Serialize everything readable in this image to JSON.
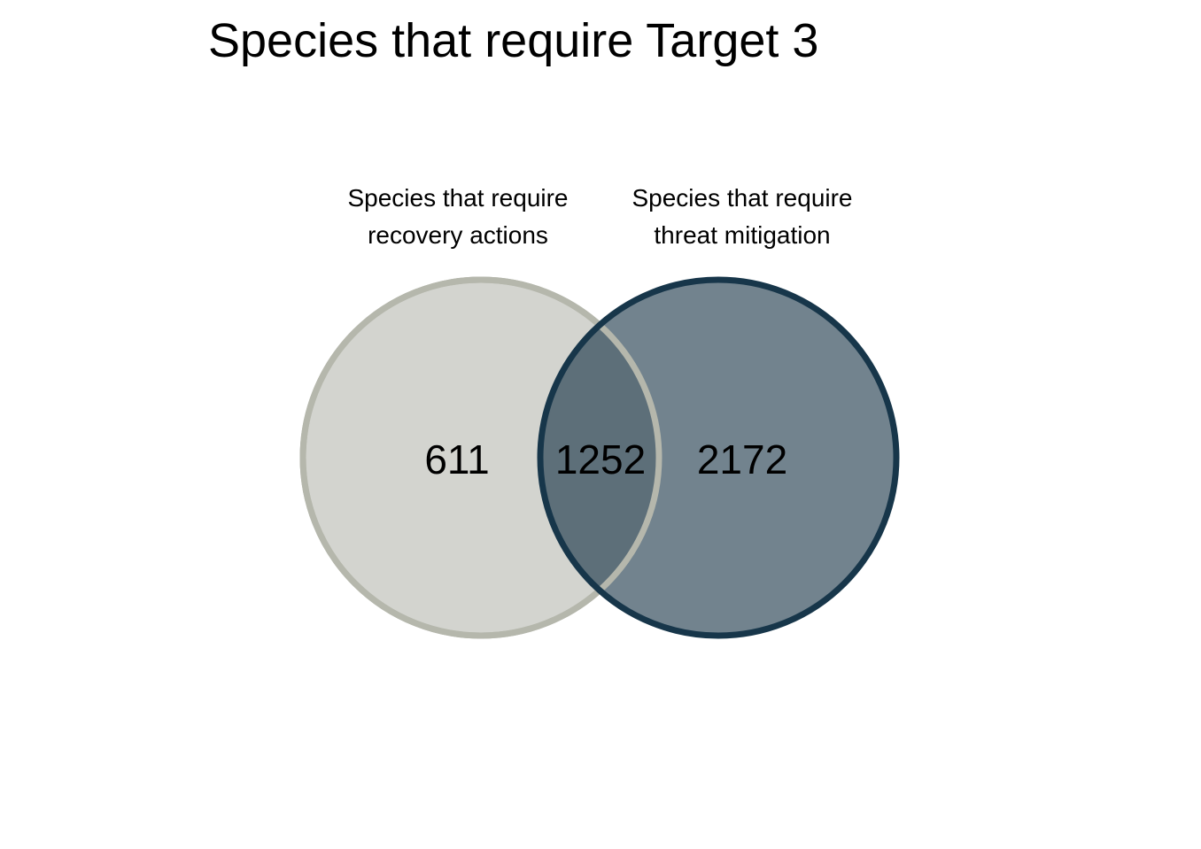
{
  "chart_data": {
    "type": "venn",
    "title": "Species that require Target 3",
    "sets": [
      {
        "name_lines": [
          "Species that require",
          "recovery actions"
        ],
        "only_count": "611",
        "fill": "#d3d4cf",
        "stroke": "#b5b7ac"
      },
      {
        "name_lines": [
          "Species that require",
          "threat mitigation"
        ],
        "only_count": "2172",
        "fill": "#72838e",
        "stroke": "#17364a"
      }
    ],
    "intersection_count": "1252",
    "overlap_fill": "#5d6f79"
  }
}
